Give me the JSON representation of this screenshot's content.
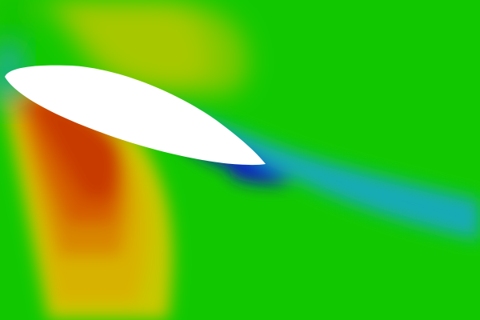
{
  "figure": {
    "kind": "cfd-contour-plot",
    "subject": "airfoil",
    "colormap": [
      "#0b1fc4",
      "#1aa6d6",
      "#11c800",
      "#b6c800",
      "#d8a800",
      "#d05a00",
      "#c82800"
    ]
  }
}
